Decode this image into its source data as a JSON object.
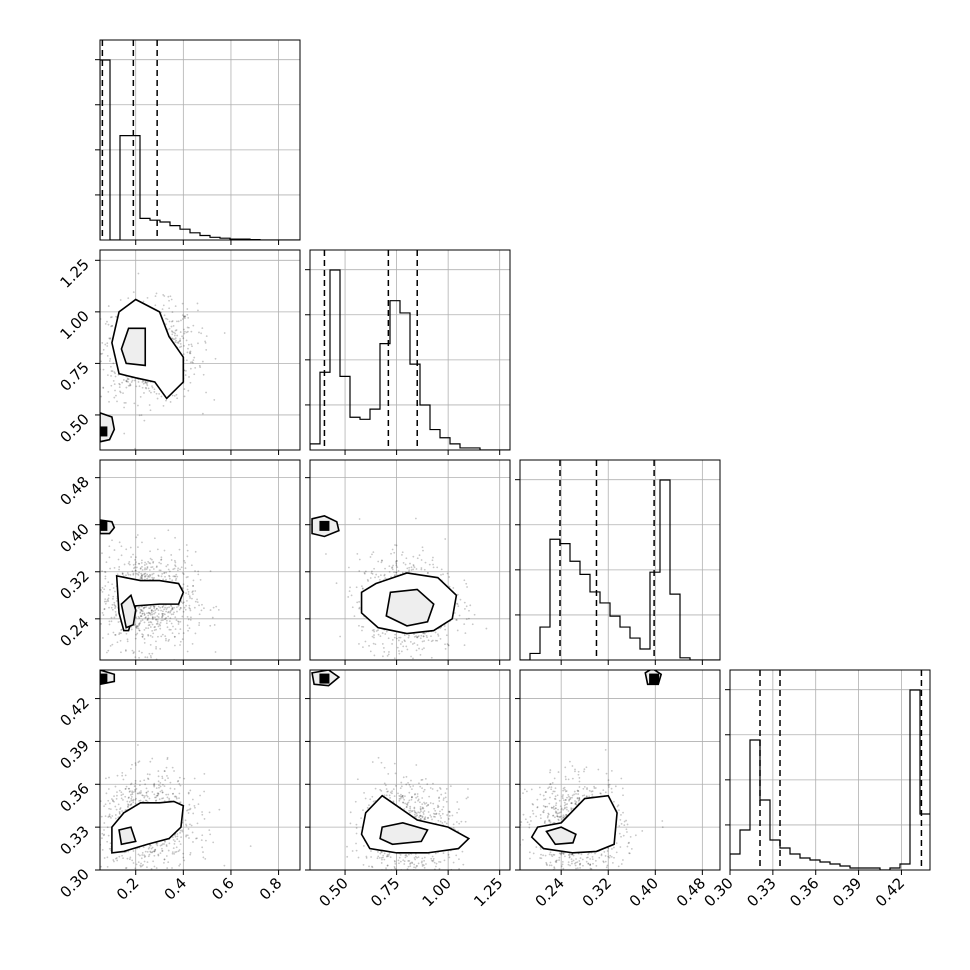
{
  "chart_data": {
    "type": "corner",
    "n_params": 4,
    "grid": true,
    "parameters": [
      {
        "range": [
          0.05,
          0.89
        ],
        "ticks": [
          0.2,
          0.4,
          0.6,
          0.8
        ],
        "tick_labels": [
          "0.2",
          "0.4",
          "0.6",
          "0.8"
        ],
        "quantiles": [
          0.06,
          0.19,
          0.29
        ]
      },
      {
        "range": [
          0.33,
          1.3
        ],
        "ticks": [
          0.5,
          0.75,
          1.0,
          1.25
        ],
        "tick_labels": [
          "0.50",
          "0.75",
          "1.00",
          "1.25"
        ],
        "quantiles": [
          0.4,
          0.71,
          0.85
        ]
      },
      {
        "range": [
          0.17,
          0.51
        ],
        "ticks": [
          0.24,
          0.32,
          0.4,
          0.48
        ],
        "tick_labels": [
          "0.24",
          "0.32",
          "0.40",
          "0.48"
        ],
        "quantiles": [
          0.238,
          0.3,
          0.398
        ]
      },
      {
        "range": [
          0.3,
          0.44
        ],
        "ticks": [
          0.3,
          0.33,
          0.36,
          0.39,
          0.42
        ],
        "tick_labels": [
          "0.30",
          "0.33",
          "0.36",
          "0.39",
          "0.42"
        ],
        "quantiles": [
          0.321,
          0.335,
          0.434
        ]
      }
    ],
    "histograms": [
      {
        "edges_start": 0.05,
        "bin_width": 0.042,
        "counts": [
          1.0,
          0.0,
          0.58,
          0.58,
          0.12,
          0.11,
          0.1,
          0.08,
          0.06,
          0.04,
          0.025,
          0.015,
          0.01,
          0.005,
          0.005,
          0.002,
          0.0,
          0.0,
          0.0,
          0.0
        ]
      },
      {
        "edges_start": 0.33,
        "bin_width": 0.0485,
        "counts": [
          0.03,
          0.38,
          0.88,
          0.36,
          0.16,
          0.15,
          0.2,
          0.52,
          0.73,
          0.67,
          0.42,
          0.22,
          0.1,
          0.06,
          0.03,
          0.01,
          0.01,
          0.0,
          0.0,
          0.0
        ]
      },
      {
        "edges_start": 0.17,
        "bin_width": 0.017,
        "counts": [
          0.0,
          0.03,
          0.15,
          0.55,
          0.53,
          0.45,
          0.39,
          0.31,
          0.26,
          0.2,
          0.15,
          0.1,
          0.05,
          0.4,
          0.82,
          0.3,
          0.01,
          0.0,
          0.0,
          0.0
        ]
      },
      {
        "edges_start": 0.3,
        "bin_width": 0.007,
        "counts": [
          0.08,
          0.2,
          0.65,
          0.35,
          0.15,
          0.11,
          0.08,
          0.06,
          0.05,
          0.04,
          0.03,
          0.02,
          0.01,
          0.01,
          0.01,
          0.0,
          0.01,
          0.03,
          0.9,
          0.28
        ]
      }
    ],
    "peaks": [
      {
        "row": 1,
        "col": 0,
        "x": 0.06,
        "y": 0.42
      },
      {
        "row": 2,
        "col": 0,
        "x": 0.06,
        "y": 0.398
      },
      {
        "row": 2,
        "col": 1,
        "x": 0.4,
        "y": 0.398
      },
      {
        "row": 3,
        "col": 0,
        "x": 0.06,
        "y": 0.434
      },
      {
        "row": 3,
        "col": 1,
        "x": 0.4,
        "y": 0.434
      },
      {
        "row": 3,
        "col": 2,
        "x": 0.398,
        "y": 0.434
      }
    ],
    "contours": [
      {
        "row": 1,
        "col": 0,
        "level": "outer",
        "points": [
          [
            0.2,
            1.06
          ],
          [
            0.3,
            1.0
          ],
          [
            0.34,
            0.88
          ],
          [
            0.4,
            0.78
          ],
          [
            0.4,
            0.66
          ],
          [
            0.33,
            0.58
          ],
          [
            0.28,
            0.66
          ],
          [
            0.2,
            0.68
          ],
          [
            0.13,
            0.7
          ],
          [
            0.1,
            0.85
          ],
          [
            0.13,
            1.0
          ]
        ]
      },
      {
        "row": 1,
        "col": 0,
        "level": "inner",
        "points": [
          [
            0.17,
            0.92
          ],
          [
            0.24,
            0.92
          ],
          [
            0.24,
            0.74
          ],
          [
            0.16,
            0.75
          ],
          [
            0.14,
            0.82
          ]
        ]
      },
      {
        "row": 1,
        "col": 0,
        "level": "mode",
        "points": [
          [
            0.05,
            0.51
          ],
          [
            0.1,
            0.49
          ],
          [
            0.11,
            0.43
          ],
          [
            0.09,
            0.38
          ],
          [
            0.05,
            0.37
          ]
        ]
      },
      {
        "row": 2,
        "col": 0,
        "level": "outer",
        "points": [
          [
            0.12,
            0.313
          ],
          [
            0.22,
            0.305
          ],
          [
            0.3,
            0.305
          ],
          [
            0.38,
            0.3
          ],
          [
            0.4,
            0.285
          ],
          [
            0.38,
            0.265
          ],
          [
            0.3,
            0.265
          ],
          [
            0.2,
            0.262
          ],
          [
            0.17,
            0.22
          ],
          [
            0.15,
            0.22
          ],
          [
            0.13,
            0.25
          ]
        ]
      },
      {
        "row": 2,
        "col": 0,
        "level": "inner",
        "points": [
          [
            0.14,
            0.265
          ],
          [
            0.18,
            0.28
          ],
          [
            0.2,
            0.255
          ],
          [
            0.19,
            0.23
          ],
          [
            0.16,
            0.225
          ]
        ]
      },
      {
        "row": 2,
        "col": 0,
        "level": "mode",
        "points": [
          [
            0.05,
            0.408
          ],
          [
            0.1,
            0.405
          ],
          [
            0.11,
            0.395
          ],
          [
            0.09,
            0.385
          ],
          [
            0.05,
            0.385
          ]
        ]
      },
      {
        "row": 2,
        "col": 1,
        "level": "outer",
        "points": [
          [
            0.65,
            0.3
          ],
          [
            0.8,
            0.318
          ],
          [
            0.95,
            0.31
          ],
          [
            1.04,
            0.28
          ],
          [
            1.02,
            0.24
          ],
          [
            0.93,
            0.22
          ],
          [
            0.8,
            0.215
          ],
          [
            0.66,
            0.225
          ],
          [
            0.58,
            0.25
          ],
          [
            0.58,
            0.285
          ]
        ]
      },
      {
        "row": 2,
        "col": 1,
        "level": "inner",
        "points": [
          [
            0.72,
            0.285
          ],
          [
            0.85,
            0.29
          ],
          [
            0.93,
            0.265
          ],
          [
            0.9,
            0.235
          ],
          [
            0.8,
            0.228
          ],
          [
            0.7,
            0.245
          ]
        ]
      },
      {
        "row": 2,
        "col": 1,
        "level": "mode",
        "points": [
          [
            0.34,
            0.41
          ],
          [
            0.4,
            0.415
          ],
          [
            0.46,
            0.405
          ],
          [
            0.47,
            0.39
          ],
          [
            0.4,
            0.38
          ],
          [
            0.34,
            0.385
          ]
        ]
      },
      {
        "row": 3,
        "col": 0,
        "level": "outer",
        "points": [
          [
            0.1,
            0.33
          ],
          [
            0.15,
            0.34
          ],
          [
            0.22,
            0.347
          ],
          [
            0.3,
            0.347
          ],
          [
            0.36,
            0.348
          ],
          [
            0.4,
            0.345
          ],
          [
            0.39,
            0.33
          ],
          [
            0.34,
            0.322
          ],
          [
            0.25,
            0.318
          ],
          [
            0.15,
            0.313
          ],
          [
            0.1,
            0.312
          ]
        ]
      },
      {
        "row": 3,
        "col": 0,
        "level": "inner",
        "points": [
          [
            0.13,
            0.328
          ],
          [
            0.18,
            0.33
          ],
          [
            0.2,
            0.32
          ],
          [
            0.14,
            0.318
          ]
        ]
      },
      {
        "row": 3,
        "col": 0,
        "level": "mode",
        "points": [
          [
            0.05,
            0.44
          ],
          [
            0.11,
            0.437
          ],
          [
            0.11,
            0.432
          ],
          [
            0.05,
            0.43
          ]
        ]
      },
      {
        "row": 3,
        "col": 1,
        "level": "outer",
        "points": [
          [
            0.6,
            0.34
          ],
          [
            0.68,
            0.352
          ],
          [
            0.75,
            0.345
          ],
          [
            0.85,
            0.335
          ],
          [
            1.0,
            0.33
          ],
          [
            1.1,
            0.322
          ],
          [
            1.05,
            0.315
          ],
          [
            0.9,
            0.312
          ],
          [
            0.75,
            0.312
          ],
          [
            0.62,
            0.315
          ],
          [
            0.58,
            0.325
          ]
        ]
      },
      {
        "row": 3,
        "col": 1,
        "level": "inner",
        "points": [
          [
            0.68,
            0.33
          ],
          [
            0.78,
            0.333
          ],
          [
            0.9,
            0.328
          ],
          [
            0.87,
            0.32
          ],
          [
            0.73,
            0.318
          ],
          [
            0.67,
            0.322
          ]
        ]
      },
      {
        "row": 3,
        "col": 1,
        "level": "mode",
        "points": [
          [
            0.34,
            0.438
          ],
          [
            0.42,
            0.44
          ],
          [
            0.47,
            0.435
          ],
          [
            0.42,
            0.429
          ],
          [
            0.35,
            0.43
          ]
        ]
      },
      {
        "row": 3,
        "col": 2,
        "level": "outer",
        "points": [
          [
            0.2,
            0.33
          ],
          [
            0.24,
            0.333
          ],
          [
            0.28,
            0.35
          ],
          [
            0.32,
            0.352
          ],
          [
            0.335,
            0.34
          ],
          [
            0.33,
            0.318
          ],
          [
            0.3,
            0.313
          ],
          [
            0.26,
            0.312
          ],
          [
            0.21,
            0.315
          ],
          [
            0.19,
            0.323
          ]
        ]
      },
      {
        "row": 3,
        "col": 2,
        "level": "inner",
        "points": [
          [
            0.215,
            0.327
          ],
          [
            0.24,
            0.33
          ],
          [
            0.265,
            0.325
          ],
          [
            0.26,
            0.319
          ],
          [
            0.23,
            0.318
          ]
        ]
      },
      {
        "row": 3,
        "col": 2,
        "level": "mode",
        "points": [
          [
            0.383,
            0.438
          ],
          [
            0.395,
            0.441
          ],
          [
            0.41,
            0.437
          ],
          [
            0.405,
            0.43
          ],
          [
            0.387,
            0.43
          ]
        ]
      }
    ]
  }
}
